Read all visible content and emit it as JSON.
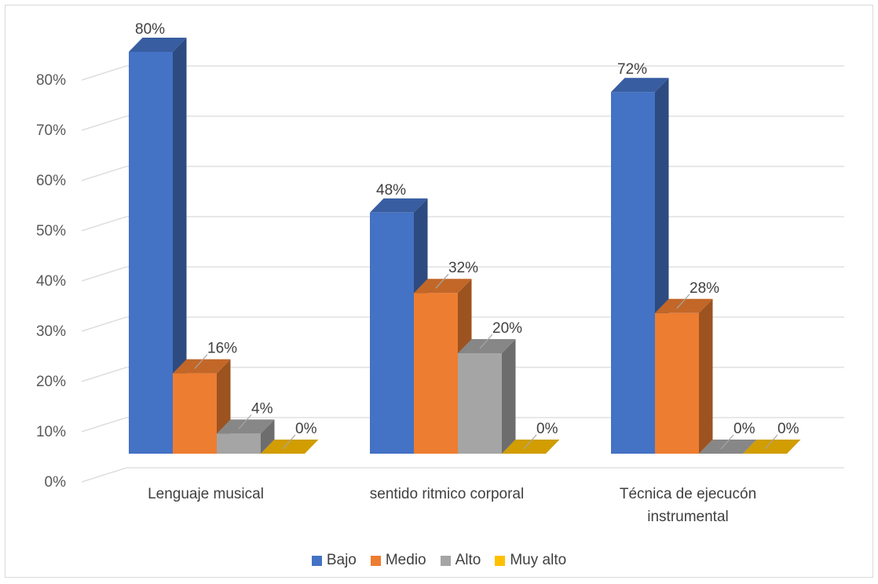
{
  "chart_data": {
    "type": "bar",
    "title": "",
    "xlabel": "",
    "ylabel": "",
    "ylim": [
      0,
      80
    ],
    "y_ticks": [
      "0%",
      "10%",
      "20%",
      "30%",
      "40%",
      "50%",
      "60%",
      "70%",
      "80%"
    ],
    "grid": true,
    "legend_position": "bottom",
    "categories": [
      "Lenguaje musical",
      "sentido ritmico corporal",
      "Técnica de ejecucón instrumental"
    ],
    "series": [
      {
        "name": "Bajo",
        "values": [
          80,
          48,
          72
        ],
        "labels": [
          "80%",
          "48%",
          "72%"
        ],
        "color": "#4472C4"
      },
      {
        "name": "Medio",
        "values": [
          16,
          32,
          28
        ],
        "labels": [
          "16%",
          "32%",
          "28%"
        ],
        "color": "#ED7D31"
      },
      {
        "name": "Alto",
        "values": [
          4,
          20,
          0
        ],
        "labels": [
          "4%",
          "20%",
          "0%"
        ],
        "color": "#A5A5A5"
      },
      {
        "name": "Muy alto",
        "values": [
          0,
          0,
          0
        ],
        "labels": [
          "0%",
          "0%",
          "0%"
        ],
        "color": "#FFC000"
      }
    ]
  }
}
